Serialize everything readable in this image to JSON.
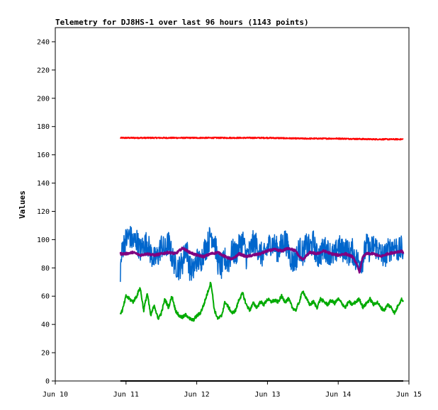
{
  "chart_data": {
    "type": "line",
    "title": "Telemetry for DJ8HS-1 over last 96 hours (1143 points)",
    "xlabel": "",
    "ylabel": "Values",
    "x_ticks": [
      "Jun 10",
      "Jun 11",
      "Jun 12",
      "Jun 13",
      "Jun 14",
      "Jun 15"
    ],
    "y_ticks": [
      0,
      20,
      40,
      60,
      80,
      100,
      120,
      140,
      160,
      180,
      200,
      220,
      240
    ],
    "xlim": [
      10,
      15
    ],
    "ylim": [
      0,
      250
    ],
    "grid": false,
    "legend": "none",
    "series": [
      {
        "color": "#ff0000",
        "width": 2,
        "noise": 0.4,
        "x": [
          10.92,
          11.5,
          12.0,
          12.5,
          13.0,
          13.5,
          14.0,
          14.5,
          14.92
        ],
        "y": [
          172,
          172,
          172,
          172,
          172,
          171.5,
          171.5,
          171,
          171
        ]
      },
      {
        "color": "#0066cc",
        "width": 1.5,
        "noise": 9,
        "x": [
          10.92,
          10.95,
          11.0,
          11.05,
          11.1,
          11.15,
          11.2,
          11.25,
          11.3,
          11.35,
          11.4,
          11.45,
          11.5,
          11.55,
          11.6,
          11.65,
          11.7,
          11.75,
          11.8,
          11.85,
          11.9,
          11.95,
          12.0,
          12.05,
          12.1,
          12.15,
          12.2,
          12.25,
          12.3,
          12.35,
          12.4,
          12.45,
          12.5,
          12.55,
          12.6,
          12.65,
          12.7,
          12.75,
          12.8,
          12.85,
          12.9,
          12.95,
          13.0,
          13.05,
          13.1,
          13.15,
          13.2,
          13.25,
          13.3,
          13.35,
          13.4,
          13.45,
          13.5,
          13.55,
          13.6,
          13.65,
          13.7,
          13.75,
          13.8,
          13.85,
          13.9,
          13.95,
          14.0,
          14.05,
          14.1,
          14.15,
          14.2,
          14.25,
          14.3,
          14.35,
          14.4,
          14.45,
          14.5,
          14.55,
          14.6,
          14.65,
          14.7,
          14.75,
          14.8,
          14.85,
          14.9,
          14.92
        ],
        "y": [
          78,
          95,
          100,
          103,
          98,
          100,
          92,
          96,
          98,
          90,
          86,
          88,
          96,
          92,
          98,
          88,
          82,
          80,
          84,
          96,
          80,
          78,
          86,
          84,
          92,
          96,
          104,
          100,
          84,
          80,
          86,
          84,
          92,
          90,
          95,
          100,
          88,
          92,
          98,
          96,
          90,
          88,
          94,
          98,
          96,
          92,
          96,
          100,
          92,
          84,
          86,
          94,
          90,
          96,
          94,
          98,
          88,
          90,
          94,
          92,
          90,
          88,
          96,
          92,
          94,
          90,
          92,
          86,
          84,
          86,
          96,
          92,
          96,
          94,
          90,
          88,
          92,
          94,
          96,
          92,
          94,
          90
        ]
      },
      {
        "color": "#800080",
        "width": 2.5,
        "noise": 0.8,
        "x": [
          10.92,
          11.0,
          11.1,
          11.2,
          11.3,
          11.4,
          11.5,
          11.6,
          11.7,
          11.8,
          11.9,
          12.0,
          12.1,
          12.2,
          12.3,
          12.4,
          12.5,
          12.6,
          12.7,
          12.8,
          12.9,
          13.0,
          13.1,
          13.2,
          13.3,
          13.4,
          13.45,
          13.5,
          13.6,
          13.7,
          13.8,
          13.9,
          14.0,
          14.1,
          14.2,
          14.25,
          14.3,
          14.35,
          14.4,
          14.5,
          14.6,
          14.7,
          14.8,
          14.9,
          14.92
        ],
        "y": [
          90,
          90,
          91,
          89,
          90,
          89,
          90,
          91,
          90,
          94,
          91,
          89,
          88,
          90,
          91,
          88,
          86,
          90,
          88,
          89,
          90,
          92,
          93,
          92,
          94,
          92,
          88,
          86,
          91,
          90,
          92,
          90,
          89,
          90,
          88,
          84,
          77,
          88,
          90,
          90,
          88,
          90,
          91,
          92,
          90
        ]
      },
      {
        "color": "#00aa00",
        "width": 2,
        "noise": 1.2,
        "x": [
          10.92,
          10.95,
          11.0,
          11.05,
          11.1,
          11.15,
          11.2,
          11.25,
          11.3,
          11.35,
          11.4,
          11.45,
          11.5,
          11.55,
          11.6,
          11.65,
          11.7,
          11.75,
          11.8,
          11.85,
          11.9,
          11.95,
          12.0,
          12.05,
          12.1,
          12.15,
          12.2,
          12.25,
          12.3,
          12.35,
          12.4,
          12.45,
          12.5,
          12.55,
          12.6,
          12.65,
          12.7,
          12.75,
          12.8,
          12.85,
          12.9,
          12.95,
          13.0,
          13.05,
          13.1,
          13.15,
          13.2,
          13.25,
          13.3,
          13.35,
          13.4,
          13.45,
          13.5,
          13.55,
          13.6,
          13.65,
          13.7,
          13.75,
          13.8,
          13.85,
          13.9,
          13.95,
          14.0,
          14.05,
          14.1,
          14.15,
          14.2,
          14.25,
          14.3,
          14.35,
          14.4,
          14.45,
          14.5,
          14.55,
          14.6,
          14.65,
          14.7,
          14.75,
          14.8,
          14.85,
          14.9,
          14.92
        ],
        "y": [
          48,
          50,
          60,
          58,
          56,
          60,
          66,
          50,
          62,
          46,
          54,
          44,
          48,
          58,
          52,
          60,
          50,
          46,
          45,
          47,
          44,
          43,
          46,
          48,
          54,
          62,
          70,
          50,
          44,
          46,
          56,
          52,
          48,
          50,
          58,
          62,
          54,
          50,
          55,
          52,
          56,
          54,
          58,
          56,
          57,
          56,
          60,
          56,
          58,
          52,
          50,
          56,
          64,
          58,
          54,
          56,
          52,
          58,
          56,
          54,
          57,
          55,
          58,
          55,
          52,
          56,
          54,
          56,
          58,
          52,
          55,
          58,
          54,
          56,
          52,
          50,
          54,
          52,
          48,
          54,
          58,
          56
        ]
      },
      {
        "color": "#000000",
        "width": 2,
        "noise": 0,
        "x": [
          10.92,
          14.92
        ],
        "y": [
          0,
          0
        ]
      }
    ]
  }
}
